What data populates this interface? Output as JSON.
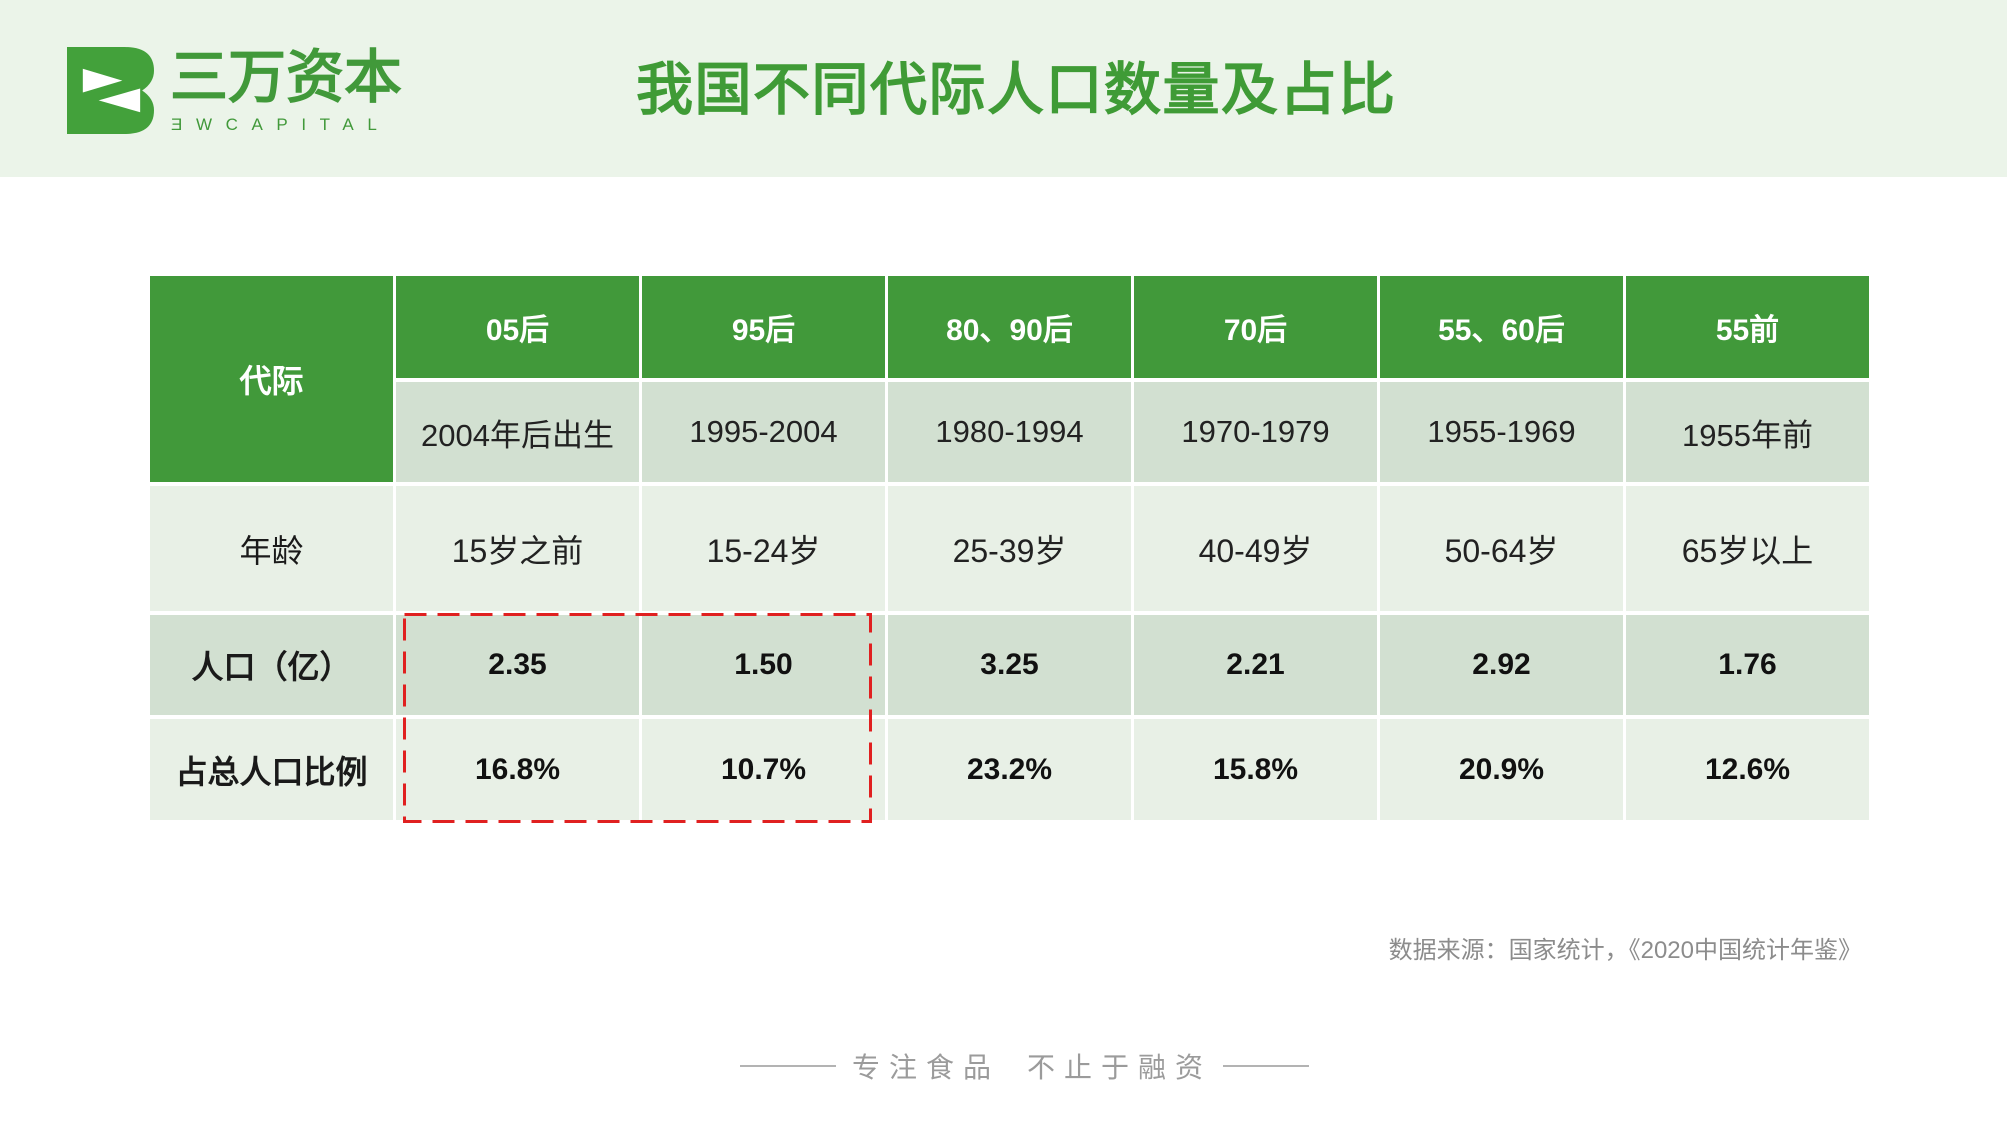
{
  "brand": {
    "name": "三万资本",
    "subtitle": "ƎWCAPITAL",
    "logo_icon": "sanwan-logo-icon"
  },
  "title": "我国不同代际人口数量及占比",
  "table": {
    "corner_label": "代际",
    "generations": [
      "05后",
      "95后",
      "80、90后",
      "70后",
      "55、60后",
      "55前"
    ],
    "birth_years": [
      "2004年后出生",
      "1995-2004",
      "1980-1994",
      "1970-1979",
      "1955-1969",
      "1955年前"
    ],
    "rows": [
      {
        "label": "年龄",
        "values": [
          "15岁之前",
          "15-24岁",
          "25-39岁",
          "40-49岁",
          "50-64岁",
          "65岁以上"
        ]
      },
      {
        "label": "人口（亿）",
        "values": [
          "2.35",
          "1.50",
          "3.25",
          "2.21",
          "2.92",
          "1.76"
        ]
      },
      {
        "label": "占总人口比例",
        "values": [
          "16.8%",
          "10.7%",
          "23.2%",
          "15.8%",
          "20.9%",
          "12.6%"
        ]
      }
    ]
  },
  "source": "数据来源：国家统计，《2020中国统计年鉴》",
  "footer": {
    "left": "专注食品",
    "right": "不止于融资"
  },
  "colors": {
    "band": "#ebf4e9",
    "accent": "#41993a",
    "title": "#3f9b36",
    "row_dark": "#d2e0d1",
    "row_light": "#e8f0e6",
    "highlight": "#e02020"
  }
}
